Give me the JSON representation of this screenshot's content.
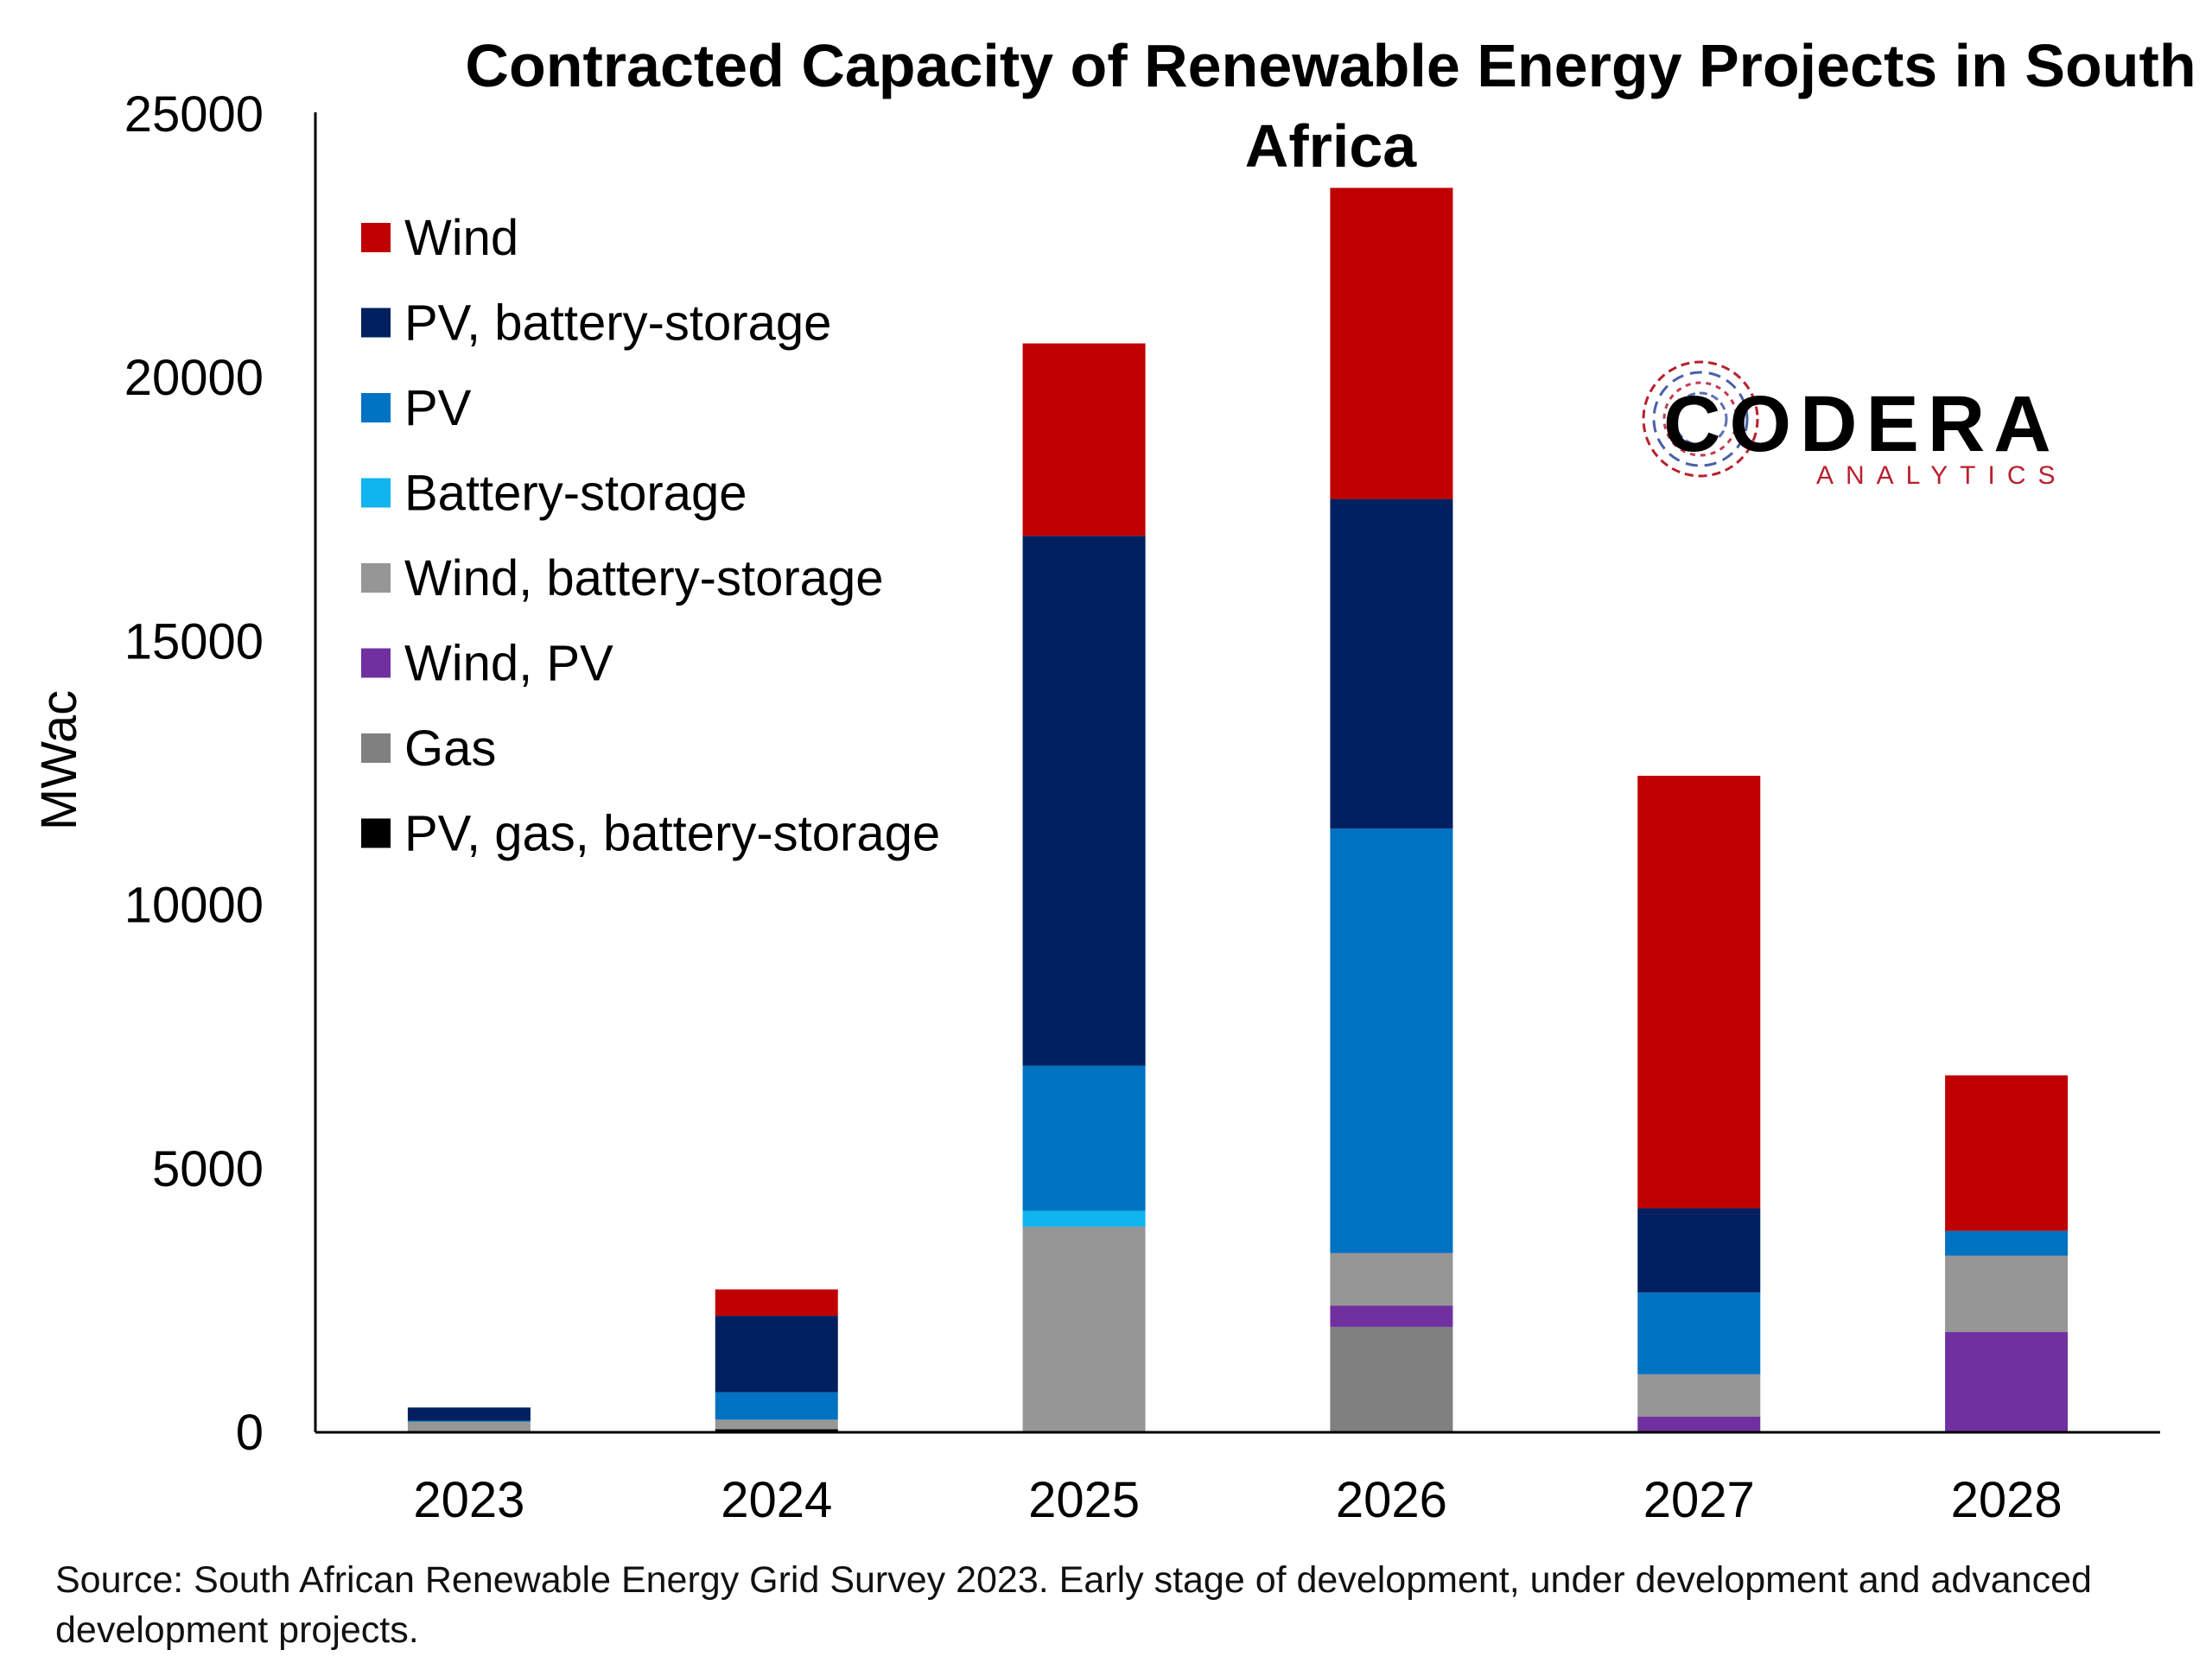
{
  "chart_data": {
    "type": "bar",
    "stacked": true,
    "title_lines": [
      "Contracted Capacity of Renewable Energy Projects in South",
      "Africa"
    ],
    "ylabel": "MWac",
    "xlabel": "",
    "ylim": [
      0,
      25000
    ],
    "yticks": [
      "0",
      "5000",
      "10000",
      "15000",
      "20000",
      "25000"
    ],
    "categories": [
      "2023",
      "2024",
      "2025",
      "2026",
      "2027",
      "2028"
    ],
    "legend_position": "top-left",
    "grid": false,
    "series": [
      {
        "name": "PV, gas, battery-storage",
        "color": "#000000",
        "values": [
          0,
          60,
          0,
          0,
          0,
          0
        ]
      },
      {
        "name": "Gas",
        "color": "#808080",
        "values": [
          0,
          0,
          0,
          2000,
          0,
          0
        ]
      },
      {
        "name": "Wind, PV",
        "color": "#7030A0",
        "values": [
          0,
          0,
          0,
          400,
          300,
          1900
        ]
      },
      {
        "name": "Wind, battery-storage",
        "color": "#969696",
        "values": [
          200,
          180,
          3900,
          1000,
          800,
          1450
        ]
      },
      {
        "name": "Battery-storage",
        "color": "#10B4EE",
        "values": [
          0,
          0,
          300,
          0,
          0,
          0
        ]
      },
      {
        "name": "PV",
        "color": "#0072C2",
        "values": [
          20,
          520,
          2750,
          8050,
          1550,
          470
        ]
      },
      {
        "name": "PV, battery-storage",
        "color": "#002060",
        "values": [
          250,
          1450,
          10050,
          6250,
          1600,
          0
        ]
      },
      {
        "name": "Wind",
        "color": "#C00000",
        "values": [
          0,
          500,
          3650,
          5900,
          8200,
          2950
        ]
      }
    ],
    "legend_order": [
      "Wind",
      "PV, battery-storage",
      "PV",
      "Battery-storage",
      "Wind, battery-storage",
      "Wind, PV",
      "Gas",
      "PV, gas, battery-storage"
    ]
  },
  "logo": {
    "name": "CODERA",
    "tagline": "ANALYTICS",
    "tagline_color": "#B8202E"
  },
  "source_note": "Source: South African Renewable Energy Grid Survey 2023. Early stage of development, under development and advanced development projects."
}
